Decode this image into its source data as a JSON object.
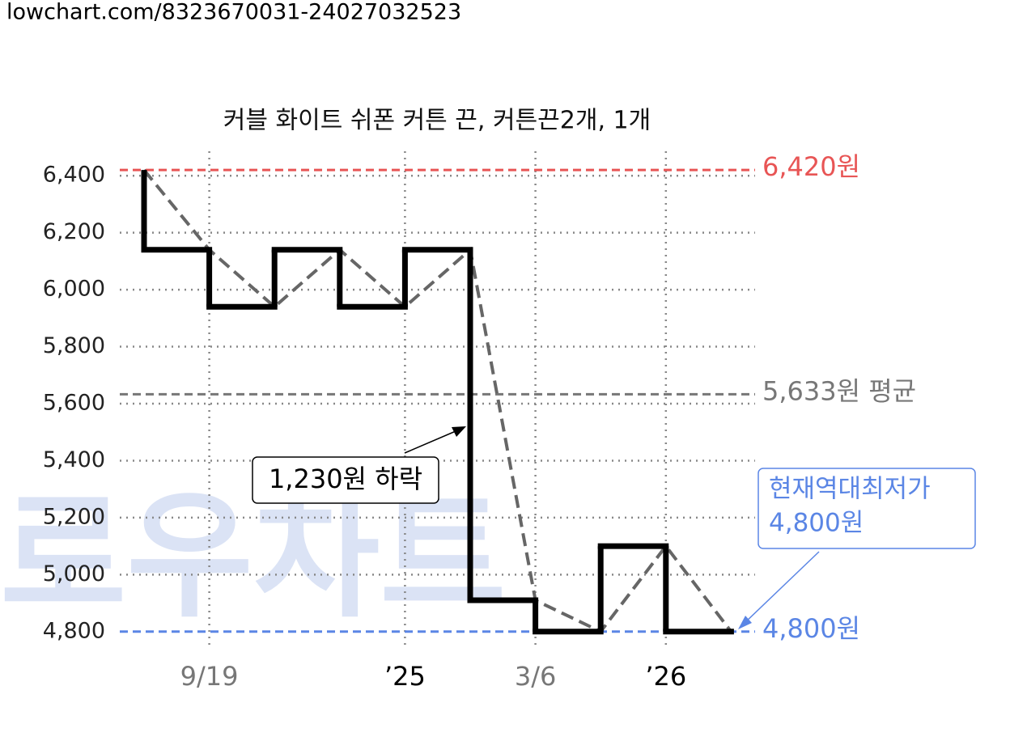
{
  "header": "lowchart.com/8323670031-24027032523",
  "watermark": "로우차트",
  "chart_data": {
    "type": "step",
    "title": "커블 화이트 쉬폰 커튼 끈, 커튼끈2개, 1개",
    "categories": [
      null,
      "9/19",
      null,
      null,
      "’25",
      null,
      "3/6",
      null,
      "’26",
      null
    ],
    "category_colors": [
      null,
      "#777777",
      null,
      null,
      "#000000",
      null,
      "#777777",
      null,
      "#000000",
      null
    ],
    "values": [
      6420,
      6140,
      5940,
      6140,
      5940,
      6140,
      4910,
      4800,
      5100,
      4800
    ],
    "color": "#000000",
    "trend_color": "#666666",
    "ylim": [
      4700,
      6500
    ],
    "yticks": [
      {
        "value": 4800,
        "label": "4,800"
      },
      {
        "value": 5000,
        "label": "5,000"
      },
      {
        "value": 5200,
        "label": "5,200"
      },
      {
        "value": 5400,
        "label": "5,400"
      },
      {
        "value": 5600,
        "label": "5,600"
      },
      {
        "value": 5800,
        "label": "5,800"
      },
      {
        "value": 6000,
        "label": "6,000"
      },
      {
        "value": 6200,
        "label": "6,200"
      },
      {
        "value": 6400,
        "label": "6,400"
      }
    ],
    "grid": true,
    "ref_lines": [
      {
        "value": 6420,
        "label": "6,420원",
        "color": "#e85555"
      },
      {
        "value": 5633,
        "label": "5,633원 평균",
        "color": "#777777"
      },
      {
        "value": 4800,
        "label": "4,800원",
        "color": "#5b86e5"
      }
    ],
    "drop_annotation": "1,230원 하락",
    "low_annotation": [
      "현재역대최저가",
      "4,800원"
    ]
  }
}
